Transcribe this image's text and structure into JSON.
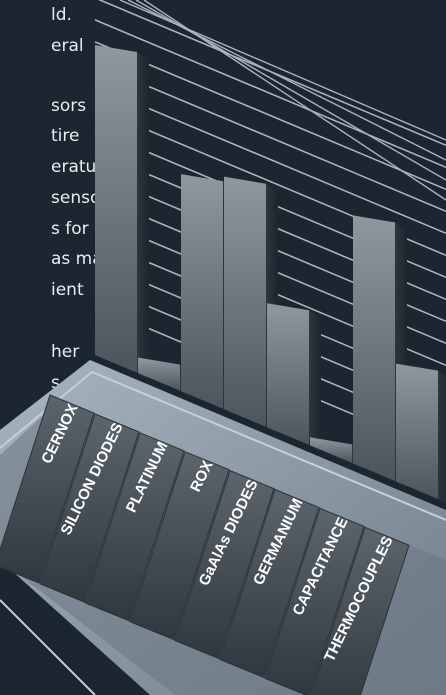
{
  "intro": {
    "lines": [
      "ld.",
      "eral",
      "sors",
      "tire",
      "erature",
      "sensor",
      "s for",
      "as many",
      "ient",
      "her",
      "s."
    ]
  },
  "chart_data": {
    "type": "bar",
    "title": "",
    "xlabel": "",
    "ylabel": "",
    "grid": true,
    "categories": [
      "CERNOX",
      "SILICON DIODES",
      "PLATINUM",
      "ROX",
      "GaAlAs DIODES",
      "GERMANIUM",
      "CAPACITANCE",
      "THERMOCOUPLES"
    ],
    "values": [
      100,
      5,
      70,
      75,
      40,
      0,
      80,
      38
    ]
  },
  "colors": {
    "background": "#1b2630",
    "grid": "#aab4bc",
    "bar_light": "#8a939a",
    "bar_dark": "#4a5258",
    "platform_top": "#8e9ba7",
    "platform_edge": "#b9c5cf",
    "label": "#ffffff"
  }
}
